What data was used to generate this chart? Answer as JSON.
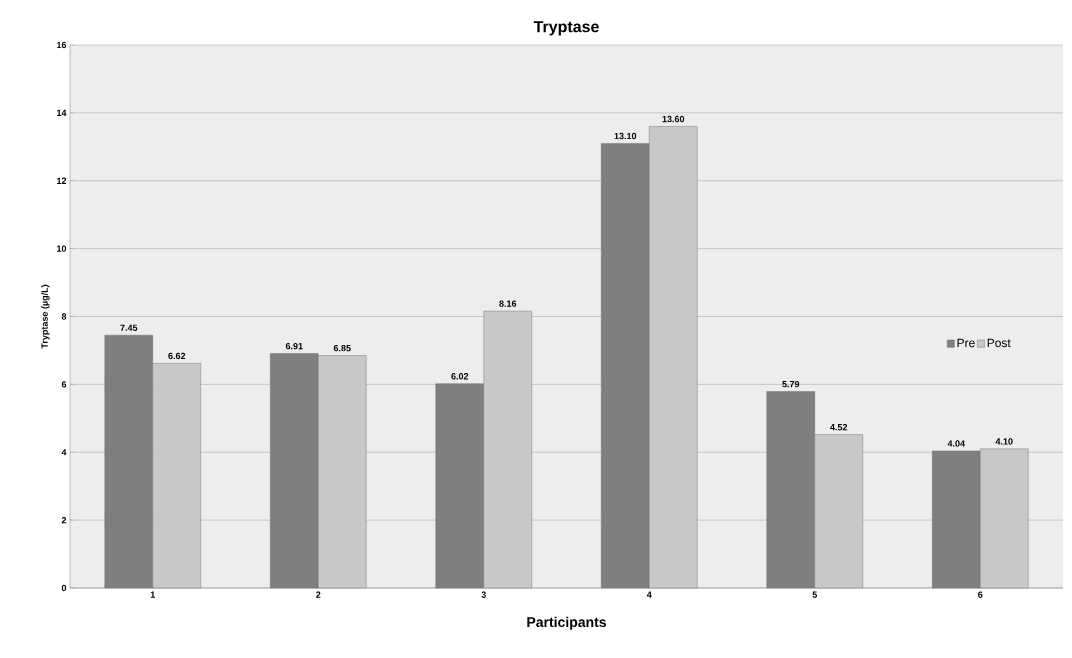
{
  "chart_data": {
    "type": "bar",
    "title": "Tryptase",
    "xlabel": "Participants",
    "ylabel": "Tryptase (µg/L)",
    "categories": [
      "1",
      "2",
      "3",
      "4",
      "5",
      "6"
    ],
    "series": [
      {
        "name": "Pre",
        "color": "#7f7f7f",
        "values": [
          7.45,
          6.91,
          6.02,
          13.1,
          5.79,
          4.04
        ],
        "value_labels": [
          "7.45",
          "6.91",
          "6.02",
          "13.10",
          "5.79",
          "4.04"
        ]
      },
      {
        "name": "Post",
        "color": "#c8c8c8",
        "values": [
          6.62,
          6.85,
          8.16,
          13.6,
          4.52,
          4.1
        ],
        "value_labels": [
          "6.62",
          "6.85",
          "8.16",
          "13.60",
          "4.52",
          "4.10"
        ]
      }
    ],
    "ylim": [
      0,
      16
    ],
    "yticks": [
      0,
      2,
      4,
      6,
      8,
      10,
      12,
      14,
      16
    ],
    "grid": "y",
    "legend": "right"
  }
}
